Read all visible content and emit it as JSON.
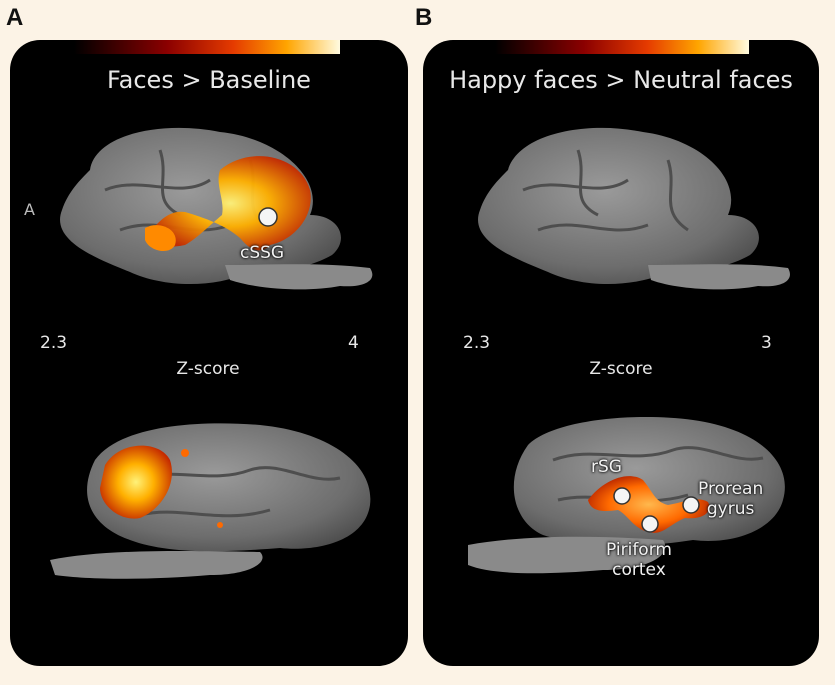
{
  "figure": {
    "panel_a": {
      "letter": "A",
      "title": "Faces > Baseline",
      "orientation_label": "A",
      "colorbar": {
        "min": "2.3",
        "max": "4",
        "label": "Z-score"
      },
      "regions": [
        "cSSG"
      ]
    },
    "panel_b": {
      "letter": "B",
      "title": "Happy faces > Neutral faces",
      "colorbar": {
        "min": "2.3",
        "max": "3",
        "label": "Z-score"
      },
      "regions": [
        "rSG",
        "Prorean gyrus",
        "Piriform cortex"
      ],
      "region_lines": {
        "prorean": [
          "Prorean",
          "gyrus"
        ],
        "piriform": [
          "Piriform",
          "cortex"
        ]
      }
    },
    "colors": {
      "panel_bg": "#000000",
      "page_bg": "#fcf3e6",
      "brain": "#7a7a7a",
      "activation_low": "#8b1a00",
      "activation_high": "#ffe24a"
    }
  }
}
